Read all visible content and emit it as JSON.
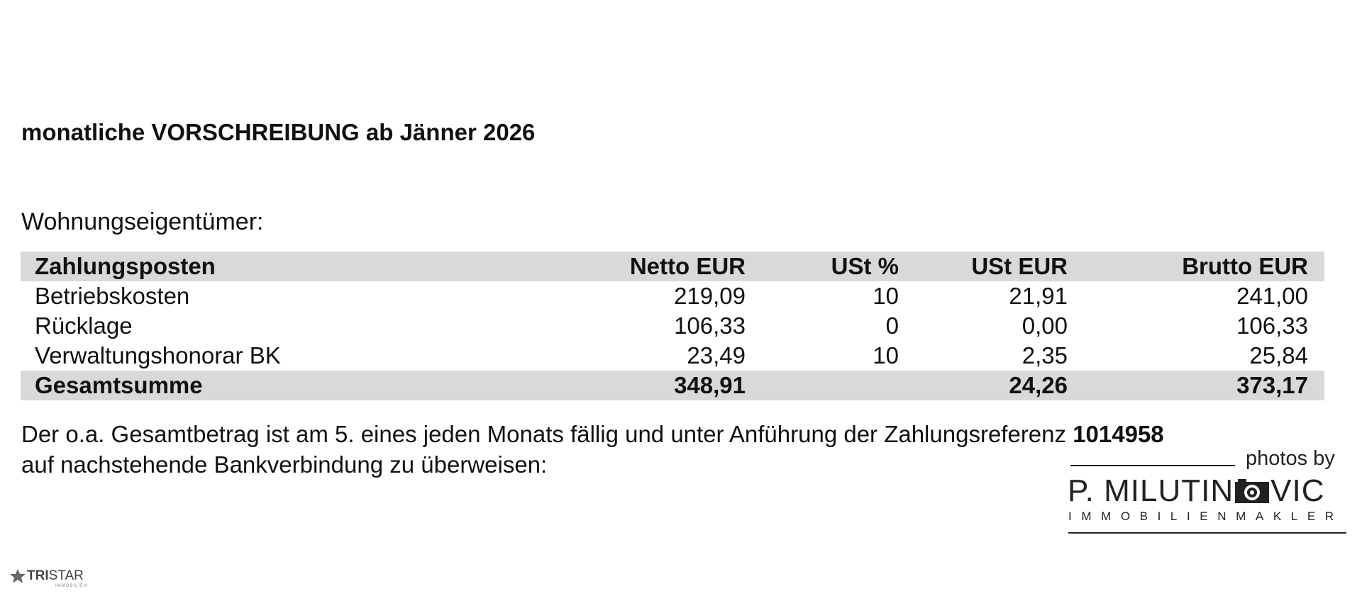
{
  "title": "monatliche VORSCHREIBUNG ab Jänner 2026",
  "owner_label": "Wohnungseigentümer:",
  "table": {
    "header": [
      "Zahlungsposten",
      "Netto EUR",
      "USt %",
      "USt EUR",
      "Brutto EUR"
    ],
    "rows": [
      [
        "Betriebskosten",
        "219,09",
        "10",
        "21,91",
        "241,00"
      ],
      [
        "Rücklage",
        "106,33",
        "0",
        "0,00",
        "106,33"
      ],
      [
        "Verwaltungshonorar BK",
        "23,49",
        "10",
        "2,35",
        "25,84"
      ]
    ],
    "total": {
      "label": "Gesamtsumme",
      "netto": "348,91",
      "ust_eur": "24,26",
      "brutto": "373,17"
    }
  },
  "payment_note": {
    "line1": "Der o.a. Gesamtbetrag ist am 5. eines jeden Monats fällig und unter Anführung der Zahlungsreferenz",
    "reference": "1014958",
    "line2": "auf nachstehende Bankverbindung zu überweisen:"
  },
  "watermark": {
    "credit": "photos by",
    "name_start": "P. MILUTIN",
    "name_end": "VIC",
    "subtitle": "IMMOBILIENMAKLER"
  },
  "footer_logo": {
    "brand_bold": "TRI",
    "brand_rest": "STAR",
    "tagline": "IMMOBILIEN"
  }
}
